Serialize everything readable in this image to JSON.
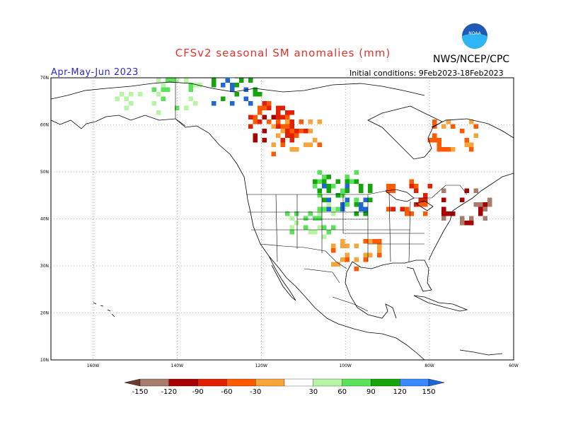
{
  "header": {
    "title": "CFSv2 seasonal SM anomalies (mm)",
    "agency": "NWS/NCEP/CPC",
    "logo_text": "NOAA",
    "period": "Apr-May-Jun 2023",
    "initial_conditions": "Initial conditions: 9Feb2023-18Feb2023"
  },
  "axes": {
    "lat_labels": [
      "70N",
      "60N",
      "50N",
      "40N",
      "30N",
      "20N",
      "10N"
    ],
    "lon_labels": [
      "160W",
      "140W",
      "120W",
      "100W",
      "80W",
      "60W"
    ],
    "lat_range": [
      10,
      70
    ],
    "lon_range": [
      -170,
      -60
    ],
    "grid": true
  },
  "colorbar": {
    "labels": [
      "-150",
      "-120",
      "-90",
      "-60",
      "-30",
      "30",
      "60",
      "90",
      "120",
      "150"
    ],
    "colors": [
      "#6b3b2e",
      "#a87c6a",
      "#a80000",
      "#e02000",
      "#ff5a00",
      "#f7a53a",
      "#ffffff",
      "#b7f5a5",
      "#59e35a",
      "#13a50a",
      "#3a88ff",
      "#1f67d8"
    ],
    "units": "mm"
  },
  "chart_data": {
    "type": "heatmap",
    "title": "CFSv2 seasonal SM anomalies (mm)",
    "subtitle": "Apr-May-Jun 2023",
    "xlabel": "",
    "ylabel": "",
    "regions": [
      {
        "name": "",
        "lon": -150,
        "lat": 66,
        "value": 60
      },
      {
        "name": "",
        "lon": -140,
        "lat": 67,
        "value": 90
      },
      {
        "name": "",
        "lon": -127,
        "lat": 68,
        "value": 150
      },
      {
        "name": "",
        "lon": -118,
        "lat": 60,
        "value": -90
      },
      {
        "name": "",
        "lon": -116,
        "lat": 62,
        "value": -60
      },
      {
        "name": "",
        "lon": -112,
        "lat": 58,
        "value": -30
      },
      {
        "name": "",
        "lon": -103,
        "lat": 47,
        "value": 120
      },
      {
        "name": "",
        "lon": -100,
        "lat": 45,
        "value": 150
      },
      {
        "name": "",
        "lon": -108,
        "lat": 40,
        "value": 90
      },
      {
        "name": "",
        "lon": -98,
        "lat": 33,
        "value": -30
      },
      {
        "name": "",
        "lon": -72,
        "lat": 43,
        "value": -120
      },
      {
        "name": "",
        "lon": -75,
        "lat": 58,
        "value": -30
      },
      {
        "name": "",
        "lon": -85,
        "lat": 45,
        "value": -60
      }
    ]
  }
}
